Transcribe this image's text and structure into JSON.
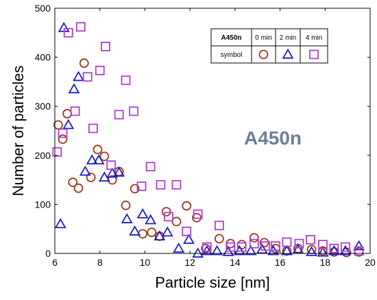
{
  "chart_data": {
    "type": "scatter",
    "xlabel": "Particle size [nm]",
    "ylabel": "Number of particles",
    "xlim": [
      6,
      20
    ],
    "ylim": [
      0,
      500
    ],
    "x_ticks": [
      "6",
      "8",
      "10",
      "12",
      "14",
      "16",
      "18",
      "20"
    ],
    "y_ticks": [
      "0",
      "100",
      "200",
      "300",
      "400",
      "500"
    ],
    "annotation": "A450n",
    "legend": {
      "corner_label": "A450n",
      "row_label": "symbol",
      "placement": "top-right",
      "columns": [
        "0 min",
        "2 min",
        "4 min"
      ]
    },
    "series": [
      {
        "name": "0 min",
        "marker": "circle",
        "color": "#a0381e",
        "points": [
          [
            6.15,
            262
          ],
          [
            6.35,
            233
          ],
          [
            6.55,
            285
          ],
          [
            6.8,
            145
          ],
          [
            7.05,
            133
          ],
          [
            7.3,
            388
          ],
          [
            7.6,
            155
          ],
          [
            7.9,
            212
          ],
          [
            8.2,
            198
          ],
          [
            8.55,
            150
          ],
          [
            8.85,
            167
          ],
          [
            9.15,
            98
          ],
          [
            9.55,
            132
          ],
          [
            9.9,
            40
          ],
          [
            10.3,
            43
          ],
          [
            10.65,
            35
          ],
          [
            10.95,
            85
          ],
          [
            11.4,
            65
          ],
          [
            11.85,
            97
          ],
          [
            12.3,
            73
          ],
          [
            12.7,
            10
          ],
          [
            13.3,
            30
          ],
          [
            13.8,
            20
          ],
          [
            14.3,
            18
          ],
          [
            14.85,
            32
          ],
          [
            15.3,
            22
          ],
          [
            15.8,
            10
          ],
          [
            16.3,
            5
          ],
          [
            16.8,
            10
          ],
          [
            17.4,
            8
          ],
          [
            17.9,
            5
          ],
          [
            18.4,
            3
          ],
          [
            18.95,
            2
          ],
          [
            19.5,
            3
          ]
        ]
      },
      {
        "name": "2 min",
        "marker": "triangle",
        "color": "#1c1ccc",
        "points": [
          [
            6.25,
            60
          ],
          [
            6.4,
            460
          ],
          [
            6.6,
            262
          ],
          [
            6.85,
            335
          ],
          [
            7.05,
            360
          ],
          [
            7.35,
            167
          ],
          [
            7.65,
            190
          ],
          [
            7.95,
            190
          ],
          [
            8.2,
            155
          ],
          [
            8.55,
            163
          ],
          [
            8.85,
            165
          ],
          [
            9.2,
            70
          ],
          [
            9.55,
            45
          ],
          [
            9.9,
            80
          ],
          [
            10.25,
            68
          ],
          [
            10.65,
            35
          ],
          [
            11.0,
            43
          ],
          [
            11.5,
            10
          ],
          [
            11.95,
            28
          ],
          [
            12.35,
            0
          ],
          [
            12.75,
            5
          ],
          [
            13.2,
            5
          ],
          [
            13.7,
            3
          ],
          [
            14.2,
            5
          ],
          [
            14.7,
            5
          ],
          [
            15.2,
            8
          ],
          [
            15.7,
            5
          ],
          [
            16.3,
            5
          ],
          [
            16.8,
            8
          ],
          [
            17.4,
            3
          ],
          [
            17.9,
            2
          ],
          [
            18.4,
            5
          ],
          [
            18.9,
            5
          ],
          [
            19.5,
            15
          ]
        ]
      },
      {
        "name": "4 min",
        "marker": "square",
        "color": "#b03cd8",
        "points": [
          [
            6.1,
            207
          ],
          [
            6.35,
            245
          ],
          [
            6.6,
            450
          ],
          [
            6.9,
            290
          ],
          [
            7.15,
            462
          ],
          [
            7.45,
            360
          ],
          [
            7.7,
            255
          ],
          [
            8.0,
            373
          ],
          [
            8.25,
            422
          ],
          [
            8.5,
            180
          ],
          [
            8.85,
            283
          ],
          [
            9.15,
            353
          ],
          [
            9.5,
            290
          ],
          [
            9.85,
            137
          ],
          [
            10.25,
            177
          ],
          [
            10.7,
            140
          ],
          [
            11.05,
            75
          ],
          [
            11.4,
            140
          ],
          [
            11.85,
            45
          ],
          [
            12.35,
            80
          ],
          [
            12.75,
            13
          ],
          [
            13.3,
            57
          ],
          [
            13.8,
            13
          ],
          [
            14.3,
            13
          ],
          [
            14.85,
            20
          ],
          [
            15.35,
            15
          ],
          [
            15.8,
            15
          ],
          [
            16.3,
            23
          ],
          [
            16.85,
            20
          ],
          [
            17.35,
            28
          ],
          [
            17.9,
            18
          ],
          [
            18.4,
            10
          ],
          [
            18.9,
            13
          ],
          [
            19.5,
            5
          ]
        ]
      }
    ]
  }
}
